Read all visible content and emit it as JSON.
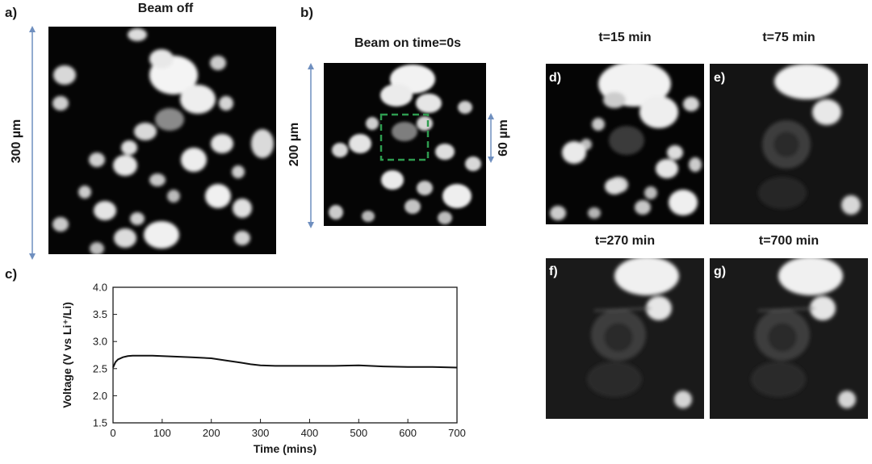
{
  "panels": {
    "a": {
      "letter": "a)",
      "title": "Beam off",
      "scale_label": "300 µm"
    },
    "b": {
      "letter": "b)",
      "title": "Beam on time=0s",
      "scale_label": "200 µm",
      "roi_label": "60 µm"
    },
    "c": {
      "letter": "c)"
    },
    "d": {
      "letter": "d)",
      "title": "t=15 min"
    },
    "e": {
      "letter": "e)",
      "title": "t=75 min"
    },
    "f": {
      "letter": "f)",
      "title": "t=270 min"
    },
    "g": {
      "letter": "g)",
      "title": "t=700 min"
    }
  },
  "colors": {
    "scale_arrow": "#6f8fbf",
    "roi_box": "#2e9b4f",
    "line": "#111111"
  },
  "chart_data": {
    "type": "line",
    "title": "",
    "xlabel": "Time (mins)",
    "ylabel": "Voltage (V vs Li⁺/Li)",
    "xlim": [
      0,
      700
    ],
    "ylim": [
      1.5,
      4.0
    ],
    "xticks": [
      "0",
      "100",
      "200",
      "300",
      "400",
      "500",
      "600",
      "700"
    ],
    "yticks": [
      "1.5",
      "2.0",
      "2.5",
      "3.0",
      "3.5",
      "4.0"
    ],
    "grid": false,
    "legend": "none",
    "series": [
      {
        "x": [
          0,
          5,
          10,
          20,
          30,
          40,
          60,
          80,
          100,
          130,
          160,
          200,
          230,
          260,
          280,
          300,
          330,
          360,
          400,
          450,
          500,
          550,
          600,
          650,
          700
        ],
        "y": [
          2.52,
          2.62,
          2.67,
          2.71,
          2.73,
          2.74,
          2.74,
          2.74,
          2.73,
          2.72,
          2.71,
          2.69,
          2.65,
          2.61,
          2.58,
          2.56,
          2.55,
          2.55,
          2.55,
          2.55,
          2.56,
          2.54,
          2.53,
          2.53,
          2.52
        ]
      }
    ]
  }
}
